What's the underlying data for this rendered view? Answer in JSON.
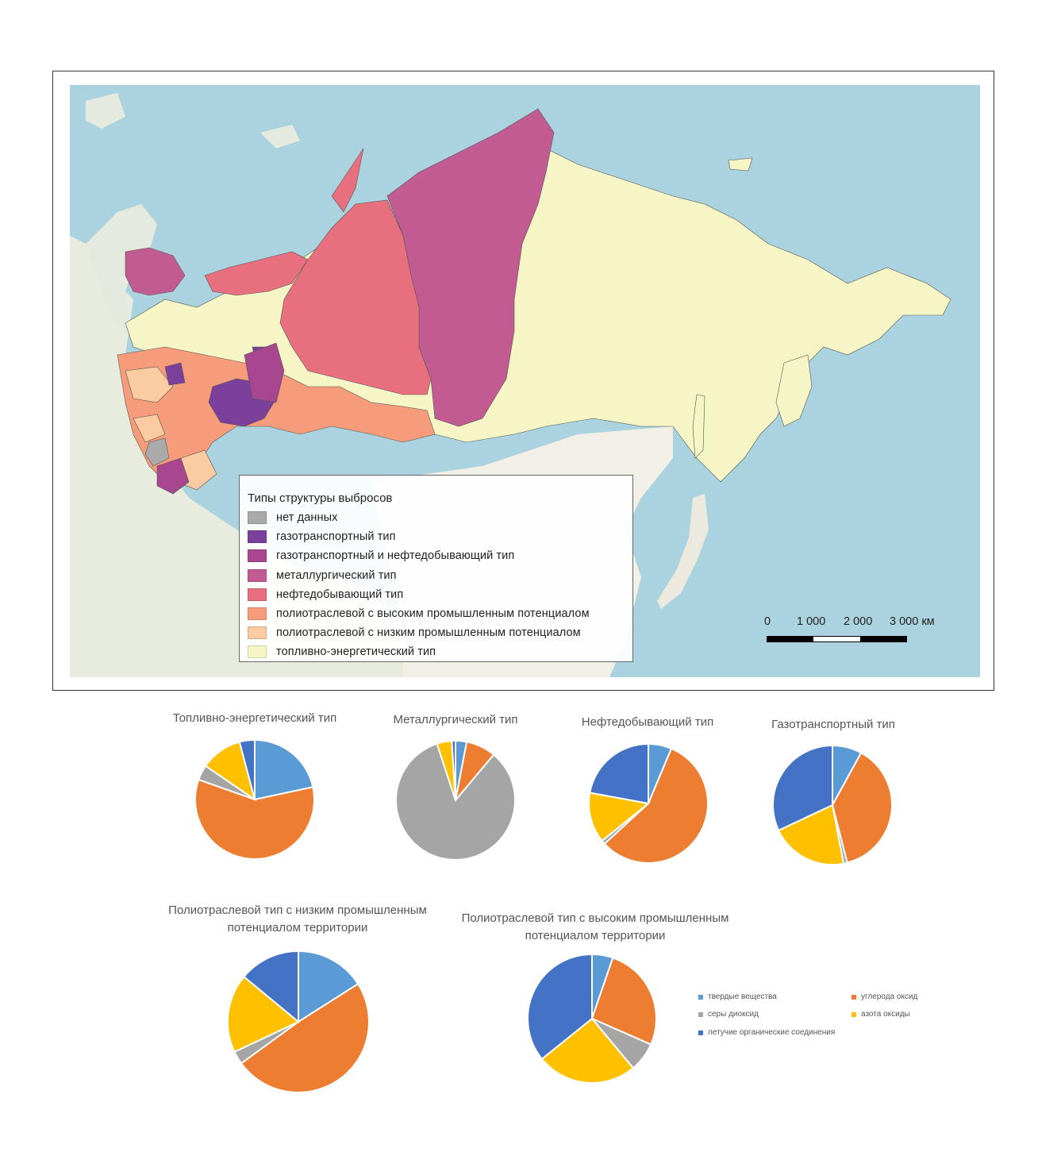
{
  "map": {
    "legend_title": "Типы структуры выбросов",
    "legend": [
      {
        "label": "нет данных",
        "color": "#aaaaaa"
      },
      {
        "label": "газотранспортный тип",
        "color": "#7b3f9c"
      },
      {
        "label": "газотранспортный и нефтедобывающий тип",
        "color": "#a8478f"
      },
      {
        "label": "металлургический тип",
        "color": "#c35b93"
      },
      {
        "label": "нефтедобывающий тип",
        "color": "#e8707e"
      },
      {
        "label": "полиотраслевой с высоким промышленным потенциалом",
        "color": "#f79c7a"
      },
      {
        "label": "полиотраслевой с низким промышленным потенциалом",
        "color": "#fbcba1"
      },
      {
        "label": "топливно-энергетический тип",
        "color": "#f6f5c6"
      }
    ],
    "scale": {
      "labels": [
        "0",
        "1 000",
        "2 000",
        "3 000 км"
      ]
    }
  },
  "chart_data": [
    {
      "type": "pie",
      "title": "Топливно-энергетический тип",
      "categories": [
        "твердые вещества",
        "углерода оксид",
        "серы диоксид",
        "азота оксиды",
        "летучие органические соединения"
      ],
      "values": [
        21,
        57,
        4,
        11,
        4
      ]
    },
    {
      "type": "pie",
      "title": "Металлургический тип",
      "categories": [
        "твердые вещества",
        "углерода оксид",
        "серы диоксид",
        "азота оксиды",
        "летучие органические соединения"
      ],
      "values": [
        3,
        8,
        83,
        4,
        1
      ]
    },
    {
      "type": "pie",
      "title": "Нефтедобывающий тип",
      "categories": [
        "твердые вещества",
        "углерода оксид",
        "серы диоксид",
        "азота оксиды",
        "летучие органические соединения"
      ],
      "values": [
        6,
        54,
        1,
        13,
        21
      ]
    },
    {
      "type": "pie",
      "title": "Газотранспортный тип",
      "categories": [
        "твердые вещества",
        "углерода оксид",
        "серы диоксид",
        "азота оксиды",
        "летучие органические соединения"
      ],
      "values": [
        8,
        38,
        1,
        21,
        32
      ]
    },
    {
      "type": "pie",
      "title": "Полиотраслевой тип с низким промышленным потенциалом территории",
      "categories": [
        "твердые вещества",
        "углерода оксид",
        "серы диоксид",
        "азота оксиды",
        "летучие органические соединения"
      ],
      "values": [
        16,
        49,
        3,
        18,
        14
      ]
    },
    {
      "type": "pie",
      "title": "Полиотраслевой тип с высоким промышленным потенциалом территории",
      "categories": [
        "твердые вещества",
        "углерода оксид",
        "серы диоксид",
        "азота оксиды",
        "летучие органические соединения"
      ],
      "values": [
        5,
        25,
        7,
        24,
        34
      ]
    }
  ],
  "pie_legend": [
    {
      "label": "твердые вещества",
      "color": "#5b9bd5"
    },
    {
      "label": "углерода оксид",
      "color": "#ed7d31"
    },
    {
      "label": "серы диоксид",
      "color": "#a5a5a5"
    },
    {
      "label": "азота оксиды",
      "color": "#ffc000"
    },
    {
      "label": "летучие органические соединения",
      "color": "#4472c4"
    }
  ]
}
